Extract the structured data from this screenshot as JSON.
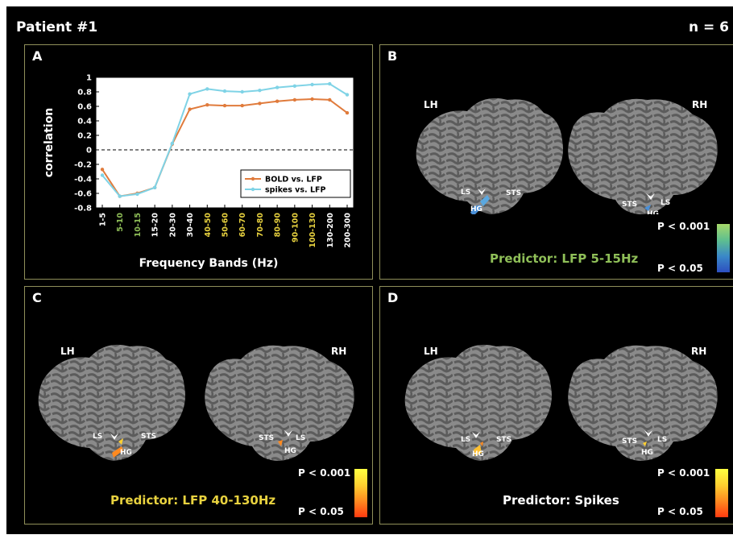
{
  "header": {
    "title": "Patient #1",
    "n_label": "n = 6"
  },
  "panels": {
    "a": {
      "letter": "A"
    },
    "b": {
      "letter": "B",
      "left_hemi": "LH",
      "right_hemi": "RH",
      "predictor": "Predictor: LFP 5-15Hz",
      "p_high": "P < 0.001",
      "p_low": "P < 0.05"
    },
    "c": {
      "letter": "C",
      "left_hemi": "LH",
      "right_hemi": "RH",
      "predictor": "Predictor: LFP 40-130Hz",
      "p_high": "P < 0.001",
      "p_low": "P < 0.05"
    },
    "d": {
      "letter": "D",
      "left_hemi": "LH",
      "right_hemi": "RH",
      "predictor": "Predictor: Spikes",
      "p_high": "P < 0.001",
      "p_low": "P < 0.05"
    }
  },
  "brain_labels": {
    "ls": "LS",
    "hg": "HG",
    "sts": "STS"
  },
  "colors": {
    "bold_series": "#e07b3c",
    "spikes_series": "#7fd3e6",
    "band_low_green": "#8fbf58",
    "band_high_yellow": "#e8d23f",
    "panel_border": "#8f8f5a"
  },
  "chart_data": {
    "type": "line",
    "xlabel": "Frequency Bands (Hz)",
    "ylabel": "correlation",
    "ylim": [
      -0.8,
      1
    ],
    "yticks": [
      "1",
      "0.8",
      "0.6",
      "0.4",
      "0.2",
      "0",
      "-0.2",
      "-0.4",
      "-0.6",
      "-0.8"
    ],
    "categories": [
      "1-5",
      "5-10",
      "10-15",
      "15-20",
      "20-30",
      "30-40",
      "40-50",
      "50-60",
      "60-70",
      "70-80",
      "80-90",
      "90-100",
      "100-130",
      "130-200",
      "200-300"
    ],
    "category_colors": [
      "white",
      "green",
      "green",
      "white",
      "white",
      "white",
      "yellow",
      "yellow",
      "yellow",
      "yellow",
      "yellow",
      "yellow",
      "yellow",
      "white",
      "white"
    ],
    "zero_line": "dashed",
    "legend_position": "bottom-right",
    "series": [
      {
        "name": "BOLD vs. LFP",
        "values": [
          -0.27,
          -0.64,
          -0.6,
          -0.52,
          0.08,
          0.56,
          0.62,
          0.61,
          0.61,
          0.64,
          0.67,
          0.69,
          0.7,
          0.69,
          0.51
        ]
      },
      {
        "name": "spikes vs. LFP",
        "values": [
          -0.35,
          -0.64,
          -0.61,
          -0.52,
          0.09,
          0.77,
          0.84,
          0.81,
          0.8,
          0.82,
          0.86,
          0.88,
          0.9,
          0.91,
          0.76
        ]
      }
    ]
  }
}
